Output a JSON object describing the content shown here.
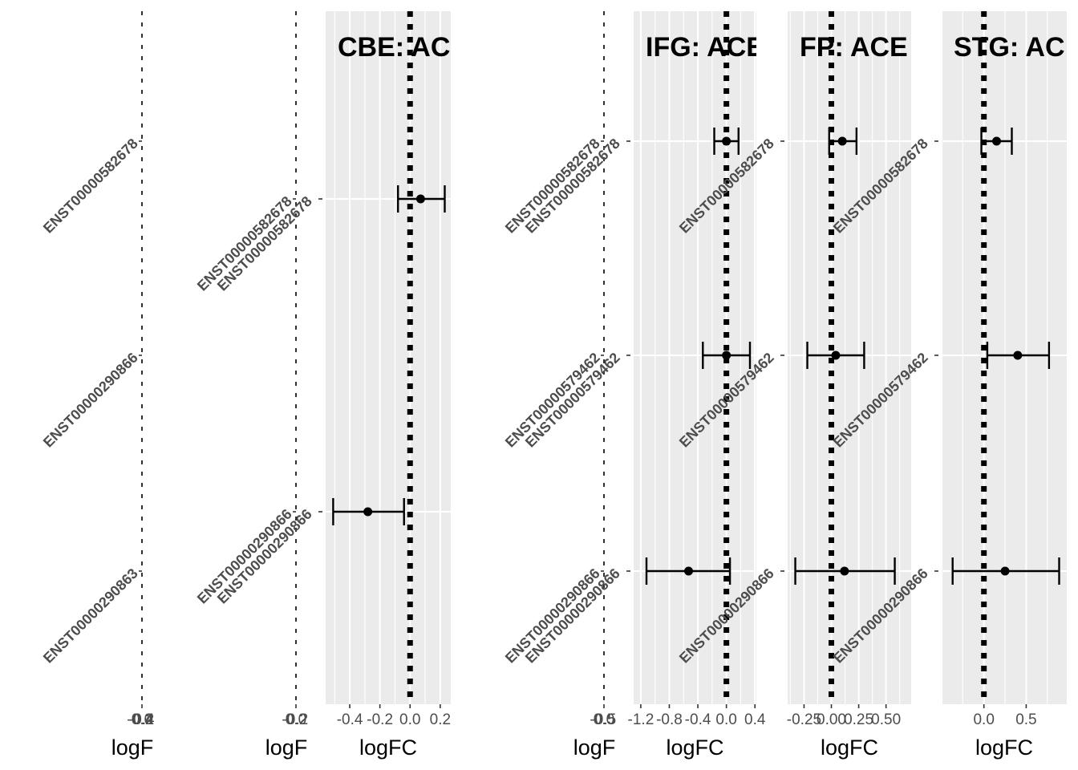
{
  "chart_data": {
    "type": "forest",
    "description_axis": "logFC",
    "panels": [
      {
        "id": "p0",
        "title": "",
        "empty": true,
        "xlabel": "logF",
        "xlim": [
          -0.5,
          0.5
        ],
        "xticks": [
          "-0.4",
          "-0.2",
          "0.0",
          "0.2",
          "0.4"
        ],
        "categories": [
          "ENST00000582678",
          "ENST00000290866",
          "ENST00000290863"
        ],
        "points": []
      },
      {
        "id": "p1",
        "title": "",
        "empty": true,
        "xlabel": "logF",
        "xlim": [
          -0.3,
          0.3
        ],
        "xticks": [
          "-0.2",
          "0.0",
          "0.2"
        ],
        "categories": [
          "ENST00000582678",
          "ENST00000290866"
        ],
        "points": []
      },
      {
        "id": "p2",
        "title": "CBE: AC",
        "empty": false,
        "xlabel": "logFC",
        "xlim": [
          -0.56,
          0.27
        ],
        "xticks": [
          {
            "v": -0.4,
            "label": "-0.4"
          },
          {
            "v": -0.2,
            "label": "-0.2"
          },
          {
            "v": 0.0,
            "label": "0.0"
          },
          {
            "v": 0.2,
            "label": "0.2"
          }
        ],
        "categories": [
          "ENST00000582678",
          "ENST00000290866"
        ],
        "points": [
          {
            "gene": "ENST00000582678",
            "logFC": 0.07,
            "ci_low": -0.08,
            "ci_high": 0.23
          },
          {
            "gene": "ENST00000290866",
            "logFC": -0.28,
            "ci_low": -0.51,
            "ci_high": -0.04
          }
        ]
      },
      {
        "id": "p3",
        "title": "",
        "empty": true,
        "xlabel": "logF",
        "xlim": [
          -0.6,
          0.6
        ],
        "xticks": [
          "-0.5",
          "0.0",
          "0.5"
        ],
        "categories": [
          "ENST00000582678",
          "ENST00000579462",
          "ENST00000290866"
        ],
        "points": []
      },
      {
        "id": "p4",
        "title": "IFG: ACE",
        "empty": false,
        "xlabel": "logFC",
        "xlim": [
          -1.3,
          0.42
        ],
        "xticks": [
          {
            "v": -1.2,
            "label": "-1.2"
          },
          {
            "v": -0.8,
            "label": "-0.8"
          },
          {
            "v": -0.4,
            "label": "-0.4"
          },
          {
            "v": 0.0,
            "label": "0.0"
          },
          {
            "v": 0.4,
            "label": "0.4"
          }
        ],
        "categories": [
          "ENST00000582678",
          "ENST00000579462",
          "ENST00000290866"
        ],
        "points": [
          {
            "gene": "ENST00000582678",
            "logFC": 0.0,
            "ci_low": -0.17,
            "ci_high": 0.17
          },
          {
            "gene": "ENST00000579462",
            "logFC": 0.0,
            "ci_low": -0.33,
            "ci_high": 0.33
          },
          {
            "gene": "ENST00000290866",
            "logFC": -0.53,
            "ci_low": -1.12,
            "ci_high": 0.05
          }
        ]
      },
      {
        "id": "p5",
        "title": "FP: ACE",
        "empty": false,
        "xlabel": "logFC",
        "xlim": [
          -0.4,
          0.73
        ],
        "xticks": [
          {
            "v": -0.25,
            "label": "-0.25"
          },
          {
            "v": 0.0,
            "label": "0.00"
          },
          {
            "v": 0.25,
            "label": "0.25"
          },
          {
            "v": 0.5,
            "label": "0.50"
          }
        ],
        "categories": [
          "ENST00000582678",
          "ENST00000579462",
          "ENST00000290866"
        ],
        "points": [
          {
            "gene": "ENST00000582678",
            "logFC": 0.1,
            "ci_low": -0.02,
            "ci_high": 0.23
          },
          {
            "gene": "ENST00000579462",
            "logFC": 0.04,
            "ci_low": -0.22,
            "ci_high": 0.3
          },
          {
            "gene": "ENST00000290866",
            "logFC": 0.12,
            "ci_low": -0.33,
            "ci_high": 0.58
          }
        ]
      },
      {
        "id": "p6",
        "title": "STG: AC",
        "empty": false,
        "xlabel": "logFC",
        "xlim": [
          -0.5,
          0.98
        ],
        "xticks": [
          {
            "v": 0.0,
            "label": "0.0"
          },
          {
            "v": 0.5,
            "label": "0.5"
          }
        ],
        "categories": [
          "ENST00000582678",
          "ENST00000579462",
          "ENST00000290866"
        ],
        "points": [
          {
            "gene": "ENST00000582678",
            "logFC": 0.15,
            "ci_low": -0.03,
            "ci_high": 0.33
          },
          {
            "gene": "ENST00000579462",
            "logFC": 0.4,
            "ci_low": 0.04,
            "ci_high": 0.77
          },
          {
            "gene": "ENST00000290866",
            "logFC": 0.25,
            "ci_low": -0.37,
            "ci_high": 0.89
          }
        ]
      }
    ]
  }
}
